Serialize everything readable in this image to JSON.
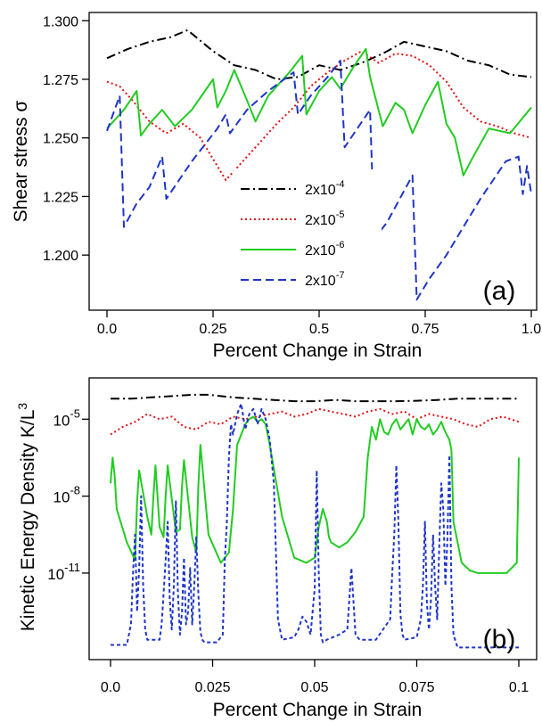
{
  "chart_data": [
    {
      "panel_label": "(a)",
      "type": "line",
      "xlabel": "Percent Change in Strain",
      "ylabel": "Shear stress σ",
      "xlim": [
        0,
        1.0
      ],
      "ylim": [
        1.178,
        1.302
      ],
      "xticks": [
        "0.0",
        "0.25",
        "0.5",
        "0.75",
        "1.0"
      ],
      "yticks": [
        "1.200",
        "1.225",
        "1.250",
        "1.275",
        "1.300"
      ],
      "legend_position": "center-left",
      "series": [
        {
          "name": "2x10-4",
          "base": "2x10",
          "exp": "-4",
          "color": "#000000",
          "dash": "10,4,2,4",
          "style": "dash-dot",
          "x": [
            0,
            0.05,
            0.1,
            0.15,
            0.19,
            0.25,
            0.3,
            0.35,
            0.4,
            0.45,
            0.5,
            0.55,
            0.6,
            0.65,
            0.7,
            0.75,
            0.8,
            0.85,
            0.9,
            0.95,
            1.0
          ],
          "y": [
            1.284,
            1.288,
            1.291,
            1.293,
            1.296,
            1.287,
            1.281,
            1.279,
            1.275,
            1.276,
            1.281,
            1.279,
            1.282,
            1.286,
            1.291,
            1.289,
            1.287,
            1.283,
            1.281,
            1.277,
            1.276
          ]
        },
        {
          "name": "2x10-5",
          "base": "2x10",
          "exp": "-5",
          "color": "#e01010",
          "dash": "2,3",
          "style": "dotted",
          "x": [
            0,
            0.03,
            0.06,
            0.1,
            0.14,
            0.18,
            0.22,
            0.26,
            0.28,
            0.32,
            0.36,
            0.4,
            0.44,
            0.48,
            0.52,
            0.56,
            0.6,
            0.64,
            0.68,
            0.72,
            0.76,
            0.8,
            0.84,
            0.88,
            0.92,
            0.96,
            1.0
          ],
          "y": [
            1.274,
            1.272,
            1.266,
            1.257,
            1.252,
            1.256,
            1.25,
            1.238,
            1.232,
            1.24,
            1.248,
            1.256,
            1.263,
            1.272,
            1.278,
            1.283,
            1.287,
            1.282,
            1.286,
            1.285,
            1.281,
            1.274,
            1.263,
            1.257,
            1.255,
            1.252,
            1.25
          ]
        },
        {
          "name": "2x10-6",
          "base": "2x10",
          "exp": "-6",
          "color": "#22cc22",
          "dash": "",
          "style": "solid",
          "x": [
            0,
            0.04,
            0.07,
            0.08,
            0.1,
            0.13,
            0.16,
            0.2,
            0.25,
            0.26,
            0.28,
            0.3,
            0.33,
            0.35,
            0.38,
            0.4,
            0.43,
            0.46,
            0.47,
            0.5,
            0.53,
            0.55,
            0.58,
            0.61,
            0.62,
            0.65,
            0.68,
            0.7,
            0.72,
            0.75,
            0.78,
            0.8,
            0.82,
            0.84,
            0.86,
            0.9,
            0.95,
            1.0
          ],
          "y": [
            1.254,
            1.262,
            1.27,
            1.251,
            1.256,
            1.262,
            1.255,
            1.262,
            1.275,
            1.263,
            1.27,
            1.279,
            1.266,
            1.257,
            1.268,
            1.272,
            1.278,
            1.285,
            1.26,
            1.27,
            1.276,
            1.271,
            1.28,
            1.288,
            1.276,
            1.255,
            1.265,
            1.262,
            1.252,
            1.264,
            1.274,
            1.256,
            1.25,
            1.234,
            1.241,
            1.254,
            1.252,
            1.263
          ]
        },
        {
          "name": "2x10-7",
          "base": "2x10",
          "exp": "-7",
          "color": "#1f35c8",
          "dash": "9,5",
          "style": "dashed",
          "x": [
            0,
            0.03,
            0.04,
            0.07,
            0.1,
            0.13,
            0.14,
            0.17,
            0.2,
            0.23,
            0.26,
            0.28,
            0.29,
            0.33,
            0.38,
            0.44,
            0.45,
            0.48,
            0.52,
            0.55,
            0.56,
            0.59,
            0.62,
            0.63,
            0.66,
            0.69,
            0.72,
            0.73,
            0.76,
            0.8,
            0.84,
            0.88,
            0.91,
            0.94,
            0.97,
            0.98,
            0.99,
            1.0
          ],
          "y": [
            1.253,
            1.268,
            1.212,
            1.222,
            1.229,
            1.242,
            1.224,
            1.232,
            1.24,
            1.247,
            1.254,
            1.26,
            1.252,
            1.262,
            1.27,
            1.278,
            1.26,
            1.268,
            1.276,
            1.283,
            1.246,
            1.254,
            1.262,
            1.207,
            1.214,
            1.224,
            1.234,
            1.181,
            1.19,
            1.2,
            1.212,
            1.224,
            1.232,
            1.24,
            1.242,
            1.226,
            1.238,
            1.226
          ]
        }
      ]
    },
    {
      "panel_label": "(b)",
      "type": "line",
      "log_y": true,
      "xlabel": "Percent Change in Strain",
      "ylabel_base": "Kinetic Energy Density K/L",
      "ylabel_sup": "3",
      "xlim": [
        0,
        0.1
      ],
      "ylim_log10": [
        -14.2,
        -3.6
      ],
      "xticks": [
        "0.0",
        "0.025",
        "0.05",
        "0.075",
        "0.1"
      ],
      "yticks": [
        {
          "base": "10",
          "exp": "-5",
          "log": -5
        },
        {
          "base": "10",
          "exp": "-8",
          "log": -8
        },
        {
          "base": "10",
          "exp": "-11",
          "log": -11
        }
      ],
      "series": [
        {
          "name": "2x10-4",
          "color": "#000000",
          "dash": "10,4,2,4",
          "x": [
            0,
            0.005,
            0.01,
            0.015,
            0.02,
            0.024,
            0.03,
            0.035,
            0.04,
            0.045,
            0.05,
            0.055,
            0.06,
            0.065,
            0.07,
            0.075,
            0.08,
            0.085,
            0.09,
            0.095,
            0.1
          ],
          "log10y": [
            -4.2,
            -4.2,
            -4.15,
            -4.1,
            -4.05,
            -4.05,
            -4.15,
            -4.2,
            -4.25,
            -4.3,
            -4.3,
            -4.25,
            -4.3,
            -4.3,
            -4.3,
            -4.28,
            -4.25,
            -4.2,
            -4.2,
            -4.2,
            -4.2
          ]
        },
        {
          "name": "2x10-5",
          "color": "#e01010",
          "dash": "2,3",
          "x": [
            0,
            0.003,
            0.006,
            0.009,
            0.012,
            0.015,
            0.018,
            0.021,
            0.024,
            0.027,
            0.03,
            0.033,
            0.036,
            0.039,
            0.042,
            0.045,
            0.048,
            0.051,
            0.054,
            0.057,
            0.06,
            0.063,
            0.066,
            0.069,
            0.072,
            0.075,
            0.078,
            0.081,
            0.084,
            0.087,
            0.09,
            0.093,
            0.096,
            0.1
          ],
          "log10y": [
            -5.6,
            -5.3,
            -5.1,
            -4.8,
            -5.0,
            -4.9,
            -5.3,
            -5.4,
            -5.1,
            -5.2,
            -4.9,
            -5.0,
            -4.9,
            -4.8,
            -4.7,
            -4.9,
            -4.8,
            -4.6,
            -4.7,
            -4.8,
            -4.9,
            -4.7,
            -4.6,
            -4.8,
            -4.7,
            -5.0,
            -4.8,
            -4.9,
            -5.0,
            -5.2,
            -5.3,
            -5.0,
            -4.9,
            -5.1
          ]
        },
        {
          "name": "2x10-6",
          "color": "#22cc22",
          "dash": "",
          "x": [
            0,
            0.0005,
            0.001,
            0.0015,
            0.004,
            0.006,
            0.0065,
            0.007,
            0.009,
            0.01,
            0.0105,
            0.011,
            0.012,
            0.013,
            0.0135,
            0.014,
            0.016,
            0.017,
            0.0175,
            0.018,
            0.02,
            0.021,
            0.0215,
            0.022,
            0.024,
            0.027,
            0.029,
            0.03,
            0.031,
            0.032,
            0.033,
            0.034,
            0.035,
            0.036,
            0.037,
            0.038,
            0.0385,
            0.039,
            0.042,
            0.045,
            0.048,
            0.05,
            0.051,
            0.052,
            0.053,
            0.0535,
            0.054,
            0.056,
            0.058,
            0.06,
            0.062,
            0.063,
            0.064,
            0.065,
            0.066,
            0.067,
            0.068,
            0.069,
            0.07,
            0.071,
            0.072,
            0.073,
            0.074,
            0.075,
            0.076,
            0.077,
            0.078,
            0.079,
            0.08,
            0.081,
            0.082,
            0.083,
            0.0835,
            0.084,
            0.086,
            0.088,
            0.09,
            0.094,
            0.097,
            0.0995,
            0.1
          ],
          "log10y": [
            -7.5,
            -6.5,
            -7.2,
            -8.5,
            -9.8,
            -10.5,
            -8.2,
            -7.0,
            -8.8,
            -9.5,
            -8.0,
            -6.8,
            -9.2,
            -9.6,
            -8.0,
            -6.8,
            -9.4,
            -9.3,
            -7.6,
            -6.6,
            -9.6,
            -10.2,
            -7.6,
            -6.0,
            -9.5,
            -10.6,
            -10.2,
            -8.5,
            -6.0,
            -5.6,
            -5.2,
            -5.0,
            -4.9,
            -5.1,
            -5.0,
            -5.2,
            -5.6,
            -6.0,
            -8.8,
            -10.4,
            -10.6,
            -10.4,
            -9.2,
            -8.5,
            -9.0,
            -9.6,
            -9.8,
            -10.0,
            -9.8,
            -9.4,
            -8.8,
            -6.5,
            -5.3,
            -5.8,
            -5.0,
            -5.5,
            -5.6,
            -5.2,
            -5.0,
            -5.4,
            -5.2,
            -5.0,
            -5.6,
            -5.0,
            -5.3,
            -5.4,
            -5.2,
            -5.6,
            -5.4,
            -5.1,
            -5.5,
            -5.8,
            -6.2,
            -9.0,
            -10.6,
            -10.9,
            -11.0,
            -11.0,
            -11.0,
            -10.6,
            -6.5
          ]
        },
        {
          "name": "2x10-7",
          "color": "#1f35c8",
          "dash": "4,3",
          "x": [
            0,
            0.004,
            0.005,
            0.0055,
            0.006,
            0.0065,
            0.007,
            0.0075,
            0.008,
            0.0085,
            0.009,
            0.012,
            0.0125,
            0.013,
            0.0135,
            0.014,
            0.0145,
            0.015,
            0.0155,
            0.016,
            0.0165,
            0.017,
            0.0175,
            0.018,
            0.0185,
            0.019,
            0.0195,
            0.02,
            0.0205,
            0.021,
            0.0215,
            0.022,
            0.0225,
            0.023,
            0.026,
            0.0275,
            0.028,
            0.0285,
            0.029,
            0.0295,
            0.03,
            0.031,
            0.032,
            0.033,
            0.034,
            0.035,
            0.036,
            0.037,
            0.038,
            0.039,
            0.04,
            0.041,
            0.042,
            0.045,
            0.046,
            0.047,
            0.048,
            0.049,
            0.05,
            0.0505,
            0.051,
            0.0515,
            0.052,
            0.053,
            0.056,
            0.058,
            0.059,
            0.06,
            0.061,
            0.062,
            0.065,
            0.0685,
            0.069,
            0.0695,
            0.07,
            0.0705,
            0.071,
            0.0715,
            0.072,
            0.075,
            0.076,
            0.0765,
            0.077,
            0.0775,
            0.078,
            0.0785,
            0.079,
            0.0795,
            0.08,
            0.0805,
            0.081,
            0.0815,
            0.082,
            0.0825,
            0.083,
            0.0835,
            0.084,
            0.085,
            0.09,
            0.1
          ],
          "log10y": [
            -13.8,
            -13.8,
            -13.0,
            -11.0,
            -9.5,
            -12.5,
            -10.8,
            -8.0,
            -11.5,
            -13.2,
            -13.6,
            -13.6,
            -13.0,
            -11.8,
            -10.5,
            -9.0,
            -12.0,
            -13.2,
            -11.5,
            -8.2,
            -11.8,
            -13.4,
            -12.5,
            -10.4,
            -13.0,
            -12.5,
            -10.8,
            -13.0,
            -11.5,
            -9.6,
            -11.8,
            -13.3,
            -13.6,
            -13.7,
            -13.7,
            -13.4,
            -10.5,
            -9.0,
            -6.5,
            -5.2,
            -5.6,
            -4.8,
            -4.4,
            -5.4,
            -4.8,
            -4.6,
            -5.2,
            -4.6,
            -5.0,
            -5.8,
            -7.5,
            -12.8,
            -13.6,
            -13.5,
            -13.2,
            -12.7,
            -12.9,
            -13.4,
            -11.6,
            -7.0,
            -11.0,
            -13.4,
            -13.7,
            -13.6,
            -13.4,
            -13.2,
            -10.8,
            -13.4,
            -13.6,
            -13.6,
            -13.6,
            -12.8,
            -11.0,
            -9.5,
            -6.8,
            -9.0,
            -12.6,
            -13.4,
            -13.6,
            -13.5,
            -12.8,
            -11.5,
            -9.0,
            -12.2,
            -13.2,
            -12.0,
            -9.5,
            -11.5,
            -12.8,
            -10.0,
            -7.5,
            -8.5,
            -11.5,
            -9.8,
            -6.4,
            -11.5,
            -13.4,
            -13.9,
            -13.9,
            -13.9
          ]
        }
      ]
    }
  ]
}
